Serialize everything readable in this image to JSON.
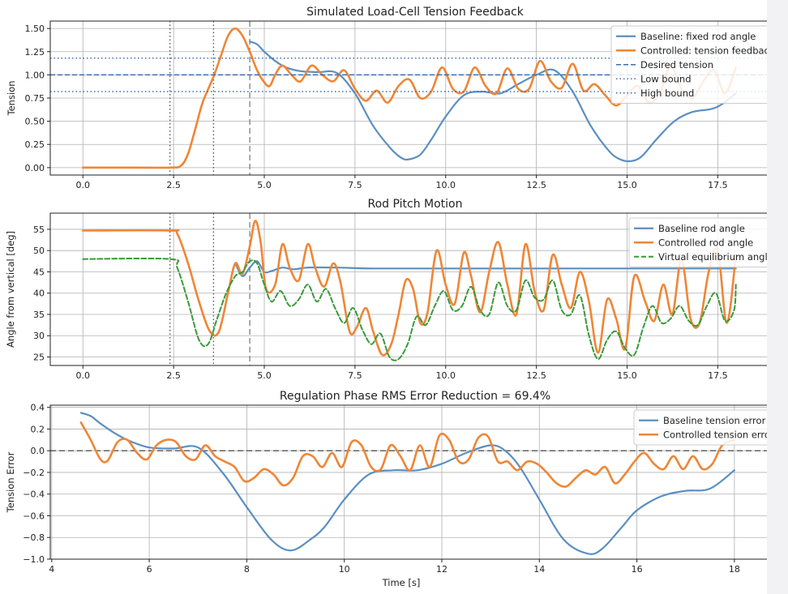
{
  "chart_data": [
    {
      "type": "line",
      "title": "Simulated Load-Cell Tension Feedback",
      "xlabel": "",
      "ylabel": "Tension",
      "xlim": [
        -0.9,
        18.9
      ],
      "ylim": [
        -0.08,
        1.58
      ],
      "xticks": [
        "0.0",
        "2.5",
        "5.0",
        "7.5",
        "10.0",
        "12.5",
        "15.0",
        "17.5"
      ],
      "xtick_values": [
        0,
        2.5,
        5,
        7.5,
        10,
        12.5,
        15,
        17.5
      ],
      "yticks": [
        "0.00",
        "0.25",
        "0.50",
        "0.75",
        "1.00",
        "1.25",
        "1.50"
      ],
      "ytick_values": [
        0,
        0.25,
        0.5,
        0.75,
        1.0,
        1.25,
        1.5
      ],
      "grid": true,
      "legend_position": "top-right",
      "vlines": [
        {
          "x": 2.4,
          "style": "dotted",
          "color": "#555555"
        },
        {
          "x": 3.6,
          "style": "dotted",
          "color": "#555555"
        },
        {
          "x": 4.6,
          "style": "dashed",
          "color": "#888888"
        }
      ],
      "series": [
        {
          "name": "Baseline: fixed rod angle",
          "color": "#5b8fc1",
          "width": 2.2,
          "style": "solid",
          "x": [
            4.6,
            4.8,
            5.0,
            5.3,
            5.6,
            6.0,
            6.5,
            7.0,
            7.5,
            8.0,
            8.5,
            8.8,
            9.0,
            9.3,
            9.6,
            10.0,
            10.5,
            11.0,
            11.5,
            12.0,
            12.5,
            13.0,
            13.5,
            14.0,
            14.5,
            14.8,
            15.1,
            15.4,
            15.8,
            16.3,
            16.8,
            17.3,
            17.6,
            18.0
          ],
          "y": [
            1.36,
            1.33,
            1.25,
            1.15,
            1.08,
            1.04,
            1.03,
            1.02,
            0.8,
            0.45,
            0.2,
            0.1,
            0.09,
            0.14,
            0.3,
            0.55,
            0.78,
            0.82,
            0.8,
            0.9,
            1.0,
            1.05,
            0.82,
            0.45,
            0.18,
            0.09,
            0.07,
            0.12,
            0.3,
            0.5,
            0.6,
            0.63,
            0.68,
            0.8
          ]
        },
        {
          "name": "Controlled: tension feedback",
          "color": "#ef8636",
          "width": 2.6,
          "style": "solid",
          "x": [
            0.0,
            1.5,
            2.4,
            2.7,
            2.9,
            3.1,
            3.3,
            3.6,
            3.8,
            4.0,
            4.2,
            4.4,
            4.6,
            4.8,
            5.0,
            5.15,
            5.3,
            5.5,
            5.75,
            6.0,
            6.3,
            6.6,
            6.9,
            7.2,
            7.5,
            7.8,
            8.1,
            8.4,
            8.7,
            9.0,
            9.3,
            9.6,
            9.9,
            10.2,
            10.5,
            10.8,
            11.1,
            11.4,
            11.7,
            12.0,
            12.3,
            12.6,
            12.9,
            13.2,
            13.5,
            13.8,
            14.1,
            14.4,
            14.7,
            15.0,
            15.3,
            15.6,
            15.9,
            16.2,
            16.5,
            16.8,
            17.1,
            17.4,
            17.7,
            18.0
          ],
          "y": [
            0.0,
            0.0,
            0.0,
            0.02,
            0.15,
            0.42,
            0.7,
            0.98,
            1.2,
            1.42,
            1.5,
            1.42,
            1.25,
            1.05,
            0.92,
            0.88,
            1.0,
            1.1,
            1.0,
            0.93,
            1.1,
            1.0,
            0.93,
            1.05,
            0.85,
            0.72,
            0.83,
            0.7,
            0.88,
            0.95,
            0.75,
            0.82,
            1.08,
            0.85,
            0.82,
            1.08,
            0.88,
            0.8,
            1.07,
            0.85,
            0.85,
            1.15,
            0.93,
            0.86,
            1.12,
            0.83,
            0.9,
            0.78,
            0.67,
            0.78,
            0.88,
            0.7,
            0.8,
            1.1,
            0.85,
            0.75,
            0.93,
            1.05,
            0.8,
            1.08
          ]
        },
        {
          "name": "Desired tension",
          "color": "#3d6fb0",
          "width": 1.5,
          "style": "dashed",
          "hline": 1.0
        },
        {
          "name": "Low bound",
          "color": "#3d6fb0",
          "width": 1.5,
          "style": "dotted",
          "hline": 0.82
        },
        {
          "name": "High bound",
          "color": "#3d6fb0",
          "width": 1.5,
          "style": "dotted",
          "hline": 1.18
        }
      ]
    },
    {
      "type": "line",
      "title": "Rod Pitch Motion",
      "xlabel": "",
      "ylabel": "Angle from vertical [deg]",
      "xlim": [
        -0.9,
        18.9
      ],
      "ylim": [
        23.0,
        58.8
      ],
      "xticks": [
        "0.0",
        "2.5",
        "5.0",
        "7.5",
        "10.0",
        "12.5",
        "15.0",
        "17.5"
      ],
      "xtick_values": [
        0,
        2.5,
        5,
        7.5,
        10,
        12.5,
        15,
        17.5
      ],
      "yticks": [
        "25",
        "30",
        "35",
        "40",
        "45",
        "50",
        "55"
      ],
      "ytick_values": [
        25,
        30,
        35,
        40,
        45,
        50,
        55
      ],
      "grid": true,
      "legend_position": "top-right",
      "vlines": [
        {
          "x": 2.4,
          "style": "dotted",
          "color": "#555555"
        },
        {
          "x": 3.6,
          "style": "dotted",
          "color": "#555555"
        },
        {
          "x": 4.6,
          "style": "dashed",
          "color": "#888888"
        }
      ],
      "series": [
        {
          "name": "Baseline rod angle",
          "color": "#5b8fc1",
          "width": 2.2,
          "style": "solid",
          "x": [
            4.2,
            4.4,
            4.6,
            4.8,
            5.0,
            5.2,
            5.5,
            5.8,
            6.2,
            7.0,
            8.0,
            10.0,
            12.0,
            14.0,
            16.0,
            18.0
          ],
          "y": [
            47.0,
            44.0,
            46.0,
            47.5,
            45.0,
            45.2,
            46.0,
            45.6,
            46.0,
            46.0,
            45.8,
            45.8,
            45.8,
            45.8,
            45.8,
            45.8
          ]
        },
        {
          "name": "Controlled rod angle",
          "color": "#ef8636",
          "width": 2.6,
          "style": "solid",
          "x": [
            0.0,
            2.4,
            2.6,
            2.9,
            3.2,
            3.5,
            3.75,
            4.0,
            4.2,
            4.4,
            4.6,
            4.75,
            4.9,
            5.05,
            5.3,
            5.5,
            5.7,
            5.95,
            6.2,
            6.4,
            6.65,
            6.9,
            7.1,
            7.35,
            7.55,
            7.8,
            8.0,
            8.25,
            8.5,
            8.7,
            8.9,
            9.1,
            9.3,
            9.5,
            9.75,
            10.0,
            10.25,
            10.5,
            10.7,
            10.95,
            11.2,
            11.45,
            11.7,
            11.95,
            12.2,
            12.45,
            12.7,
            12.95,
            13.2,
            13.45,
            13.7,
            13.95,
            14.2,
            14.45,
            14.7,
            14.95,
            15.2,
            15.5,
            15.75,
            16.0,
            16.25,
            16.5,
            16.75,
            17.0,
            17.25,
            17.5,
            17.75,
            18.0
          ],
          "y": [
            54.7,
            54.7,
            54.0,
            47.0,
            38.0,
            31.0,
            31.0,
            40.0,
            47.0,
            44.5,
            51.0,
            57.0,
            52.0,
            41.0,
            42.0,
            51.5,
            46.0,
            43.0,
            51.5,
            46.0,
            41.5,
            47.0,
            42.5,
            31.0,
            32.0,
            36.5,
            31.0,
            25.5,
            28.0,
            35.0,
            43.0,
            41.0,
            33.0,
            35.5,
            50.0,
            42.0,
            37.5,
            49.5,
            44.0,
            35.5,
            45.0,
            52.0,
            42.0,
            35.0,
            51.5,
            40.5,
            36.0,
            49.0,
            42.0,
            36.5,
            45.0,
            38.0,
            26.0,
            38.5,
            34.0,
            27.0,
            44.0,
            38.0,
            33.5,
            42.0,
            35.0,
            48.0,
            34.0,
            33.0,
            45.0,
            50.0,
            33.0,
            49.0
          ]
        },
        {
          "name": "Virtual equilibrium angle",
          "color": "#3a9a3a",
          "width": 2.0,
          "style": "dashed",
          "x": [
            0.0,
            2.4,
            2.6,
            2.9,
            3.2,
            3.45,
            3.7,
            3.95,
            4.2,
            4.4,
            4.6,
            4.8,
            5.0,
            5.2,
            5.45,
            5.7,
            5.95,
            6.2,
            6.45,
            6.7,
            6.95,
            7.2,
            7.45,
            7.7,
            7.95,
            8.2,
            8.45,
            8.7,
            8.95,
            9.2,
            9.45,
            9.7,
            9.95,
            10.2,
            10.45,
            10.7,
            10.95,
            11.2,
            11.45,
            11.7,
            11.95,
            12.2,
            12.45,
            12.7,
            12.95,
            13.2,
            13.45,
            13.7,
            13.95,
            14.2,
            14.45,
            14.7,
            14.95,
            15.2,
            15.45,
            15.7,
            15.95,
            16.2,
            16.45,
            16.7,
            16.95,
            17.2,
            17.45,
            17.7,
            17.95,
            18.0
          ],
          "y": [
            48.0,
            48.0,
            46.0,
            38.0,
            29.0,
            28.0,
            34.0,
            40.0,
            44.0,
            45.0,
            47.5,
            47.0,
            42.0,
            38.0,
            40.5,
            37.0,
            38.5,
            42.0,
            38.0,
            41.0,
            36.5,
            33.0,
            36.5,
            31.5,
            28.0,
            30.5,
            25.0,
            24.5,
            28.0,
            34.5,
            32.5,
            37.0,
            40.5,
            36.0,
            37.0,
            41.5,
            36.0,
            35.0,
            42.5,
            37.0,
            36.0,
            43.0,
            39.0,
            38.5,
            43.0,
            36.0,
            35.0,
            39.5,
            30.0,
            24.5,
            29.0,
            31.0,
            27.0,
            25.5,
            32.0,
            37.0,
            33.0,
            34.0,
            37.0,
            33.5,
            32.5,
            37.0,
            40.0,
            33.5,
            36.0,
            42.0
          ]
        }
      ]
    },
    {
      "type": "line",
      "title": "Regulation Phase RMS Error Reduction = 69.4%",
      "xlabel": "Time [s]",
      "ylabel": "Tension Error",
      "xlim": [
        3.97,
        18.7
      ],
      "ylim": [
        -1.0,
        0.42
      ],
      "xticks": [
        "4",
        "6",
        "8",
        "10",
        "12",
        "14",
        "16",
        "18"
      ],
      "xtick_values": [
        4,
        6,
        8,
        10,
        12,
        14,
        16,
        18
      ],
      "yticks": [
        "−1.0",
        "−0.8",
        "−0.6",
        "−0.4",
        "−0.2",
        "0.0",
        "0.2",
        "0.4"
      ],
      "ytick_values": [
        -1.0,
        -0.8,
        -0.6,
        -0.4,
        -0.2,
        0.0,
        0.2,
        0.4
      ],
      "grid": true,
      "legend_position": "top-right",
      "hlines": [
        {
          "y": 0.0,
          "style": "dashed",
          "color": "#555555"
        }
      ],
      "series": [
        {
          "name": "Baseline tension error",
          "color": "#5b8fc1",
          "width": 2.2,
          "style": "solid",
          "x": [
            4.6,
            4.8,
            5.0,
            5.3,
            5.6,
            6.0,
            6.5,
            7.0,
            7.5,
            8.0,
            8.5,
            8.9,
            9.3,
            9.6,
            10.0,
            10.5,
            11.0,
            11.5,
            12.0,
            12.5,
            13.0,
            13.3,
            13.6,
            14.0,
            14.5,
            15.0,
            15.3,
            15.7,
            16.0,
            16.5,
            17.0,
            17.5,
            18.0
          ],
          "y": [
            0.35,
            0.32,
            0.25,
            0.16,
            0.09,
            0.03,
            0.02,
            0.03,
            -0.2,
            -0.52,
            -0.82,
            -0.92,
            -0.82,
            -0.7,
            -0.45,
            -0.22,
            -0.18,
            -0.18,
            -0.12,
            -0.02,
            0.05,
            0.0,
            -0.15,
            -0.45,
            -0.82,
            -0.95,
            -0.9,
            -0.7,
            -0.55,
            -0.42,
            -0.37,
            -0.35,
            -0.18
          ]
        },
        {
          "name": "Controlled tension error",
          "color": "#ef8636",
          "width": 2.6,
          "style": "solid",
          "x": [
            4.6,
            4.8,
            5.0,
            5.15,
            5.35,
            5.55,
            5.75,
            5.95,
            6.15,
            6.35,
            6.55,
            6.75,
            6.95,
            7.15,
            7.35,
            7.55,
            7.75,
            7.95,
            8.15,
            8.35,
            8.55,
            8.75,
            8.95,
            9.15,
            9.35,
            9.55,
            9.75,
            9.95,
            10.15,
            10.35,
            10.55,
            10.75,
            10.95,
            11.15,
            11.35,
            11.55,
            11.75,
            11.95,
            12.15,
            12.35,
            12.55,
            12.75,
            12.95,
            13.15,
            13.35,
            13.55,
            13.75,
            13.95,
            14.15,
            14.35,
            14.55,
            14.75,
            14.95,
            15.15,
            15.35,
            15.55,
            15.75,
            15.95,
            16.15,
            16.35,
            16.55,
            16.75,
            16.95,
            17.15,
            17.35,
            17.55,
            17.75,
            18.0
          ],
          "y": [
            0.26,
            0.1,
            -0.08,
            -0.09,
            0.08,
            0.1,
            -0.02,
            -0.08,
            0.05,
            0.1,
            0.08,
            -0.05,
            -0.08,
            0.05,
            -0.05,
            -0.1,
            -0.15,
            -0.28,
            -0.25,
            -0.17,
            -0.22,
            -0.32,
            -0.25,
            -0.05,
            -0.05,
            -0.15,
            -0.02,
            -0.15,
            0.08,
            0.05,
            -0.15,
            -0.17,
            0.05,
            -0.05,
            -0.18,
            0.05,
            -0.15,
            0.14,
            0.1,
            -0.1,
            -0.08,
            0.12,
            0.13,
            -0.1,
            -0.1,
            -0.18,
            -0.1,
            -0.12,
            -0.2,
            -0.3,
            -0.33,
            -0.25,
            -0.18,
            -0.22,
            -0.15,
            -0.3,
            -0.22,
            -0.1,
            -0.02,
            -0.12,
            -0.17,
            -0.05,
            -0.17,
            -0.05,
            -0.17,
            -0.12,
            0.05,
            0.1
          ]
        }
      ]
    }
  ]
}
